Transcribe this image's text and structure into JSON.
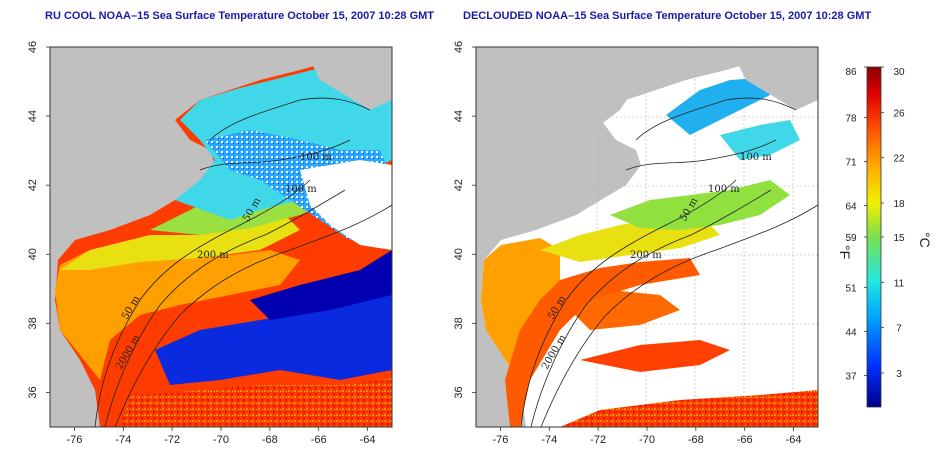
{
  "panels": [
    {
      "title": "RU COOL NOAA–15 Sea Surface Temperature October 15, 2007 10:28 GMT",
      "contour_labels": [
        "100 m",
        "100 m",
        "50 m",
        "200 m",
        "50 m",
        "2000 m"
      ]
    },
    {
      "title": "DECLOUDED NOAA–15 Sea Surface Temperature October 15, 2007 10:28 GMT",
      "contour_labels": [
        "100 m",
        "100 m",
        "50 m",
        "200 m",
        "50 m",
        "2000 m"
      ]
    }
  ],
  "map": {
    "lon_ticks": [
      "-76",
      "-74",
      "-72",
      "-70",
      "-68",
      "-66",
      "-64"
    ],
    "lat_ticks": [
      "36",
      "38",
      "40",
      "42",
      "44",
      "46"
    ],
    "lon_range": [
      -77,
      -63
    ],
    "lat_range": [
      35,
      46
    ],
    "land_color": "#c0c0c0",
    "cloud_color": "#ffffff"
  },
  "colorbar": {
    "fahrenheit_ticks": [
      "86",
      "78",
      "71",
      "64",
      "59",
      "51",
      "44",
      "37"
    ],
    "celsius_ticks": [
      "30",
      "26",
      "22",
      "18",
      "15",
      "11",
      "7",
      "3"
    ],
    "fahrenheit_unit": "°F",
    "celsius_unit": "°C",
    "range_c": [
      0,
      30
    ]
  }
}
